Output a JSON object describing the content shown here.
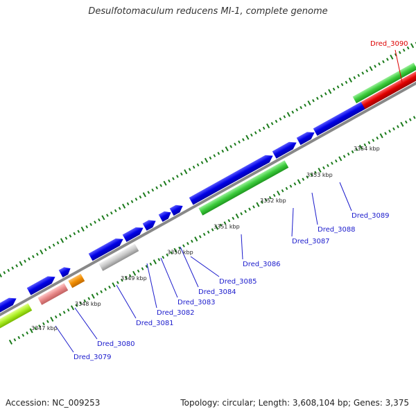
{
  "title": "Desulfotomaculum reducens MI-1, complete genome",
  "footer": {
    "accession": "Accession: NC_009253",
    "summary": "Topology: circular; Length: 3,608,104 bp; Genes: 3,375"
  },
  "colors": {
    "backbone": "#888888",
    "tick": "#1a7a1a",
    "label_default": "#1a1acc",
    "label_highlight": "#dd0000"
  },
  "kbp_labels": [
    "3347 kbp",
    "3348 kbp",
    "3349 kbp",
    "3350 kbp",
    "3351 kbp",
    "3352 kbp",
    "3353 kbp",
    "3354 kbp"
  ],
  "gene_labels": [
    "Dred_3079",
    "Dred_3080",
    "Dred_3081",
    "Dred_3082",
    "Dred_3083",
    "Dred_3084",
    "Dred_3085",
    "Dred_3086",
    "Dred_3087",
    "Dred_3088",
    "Dred_3089",
    "Dred_3090"
  ]
}
